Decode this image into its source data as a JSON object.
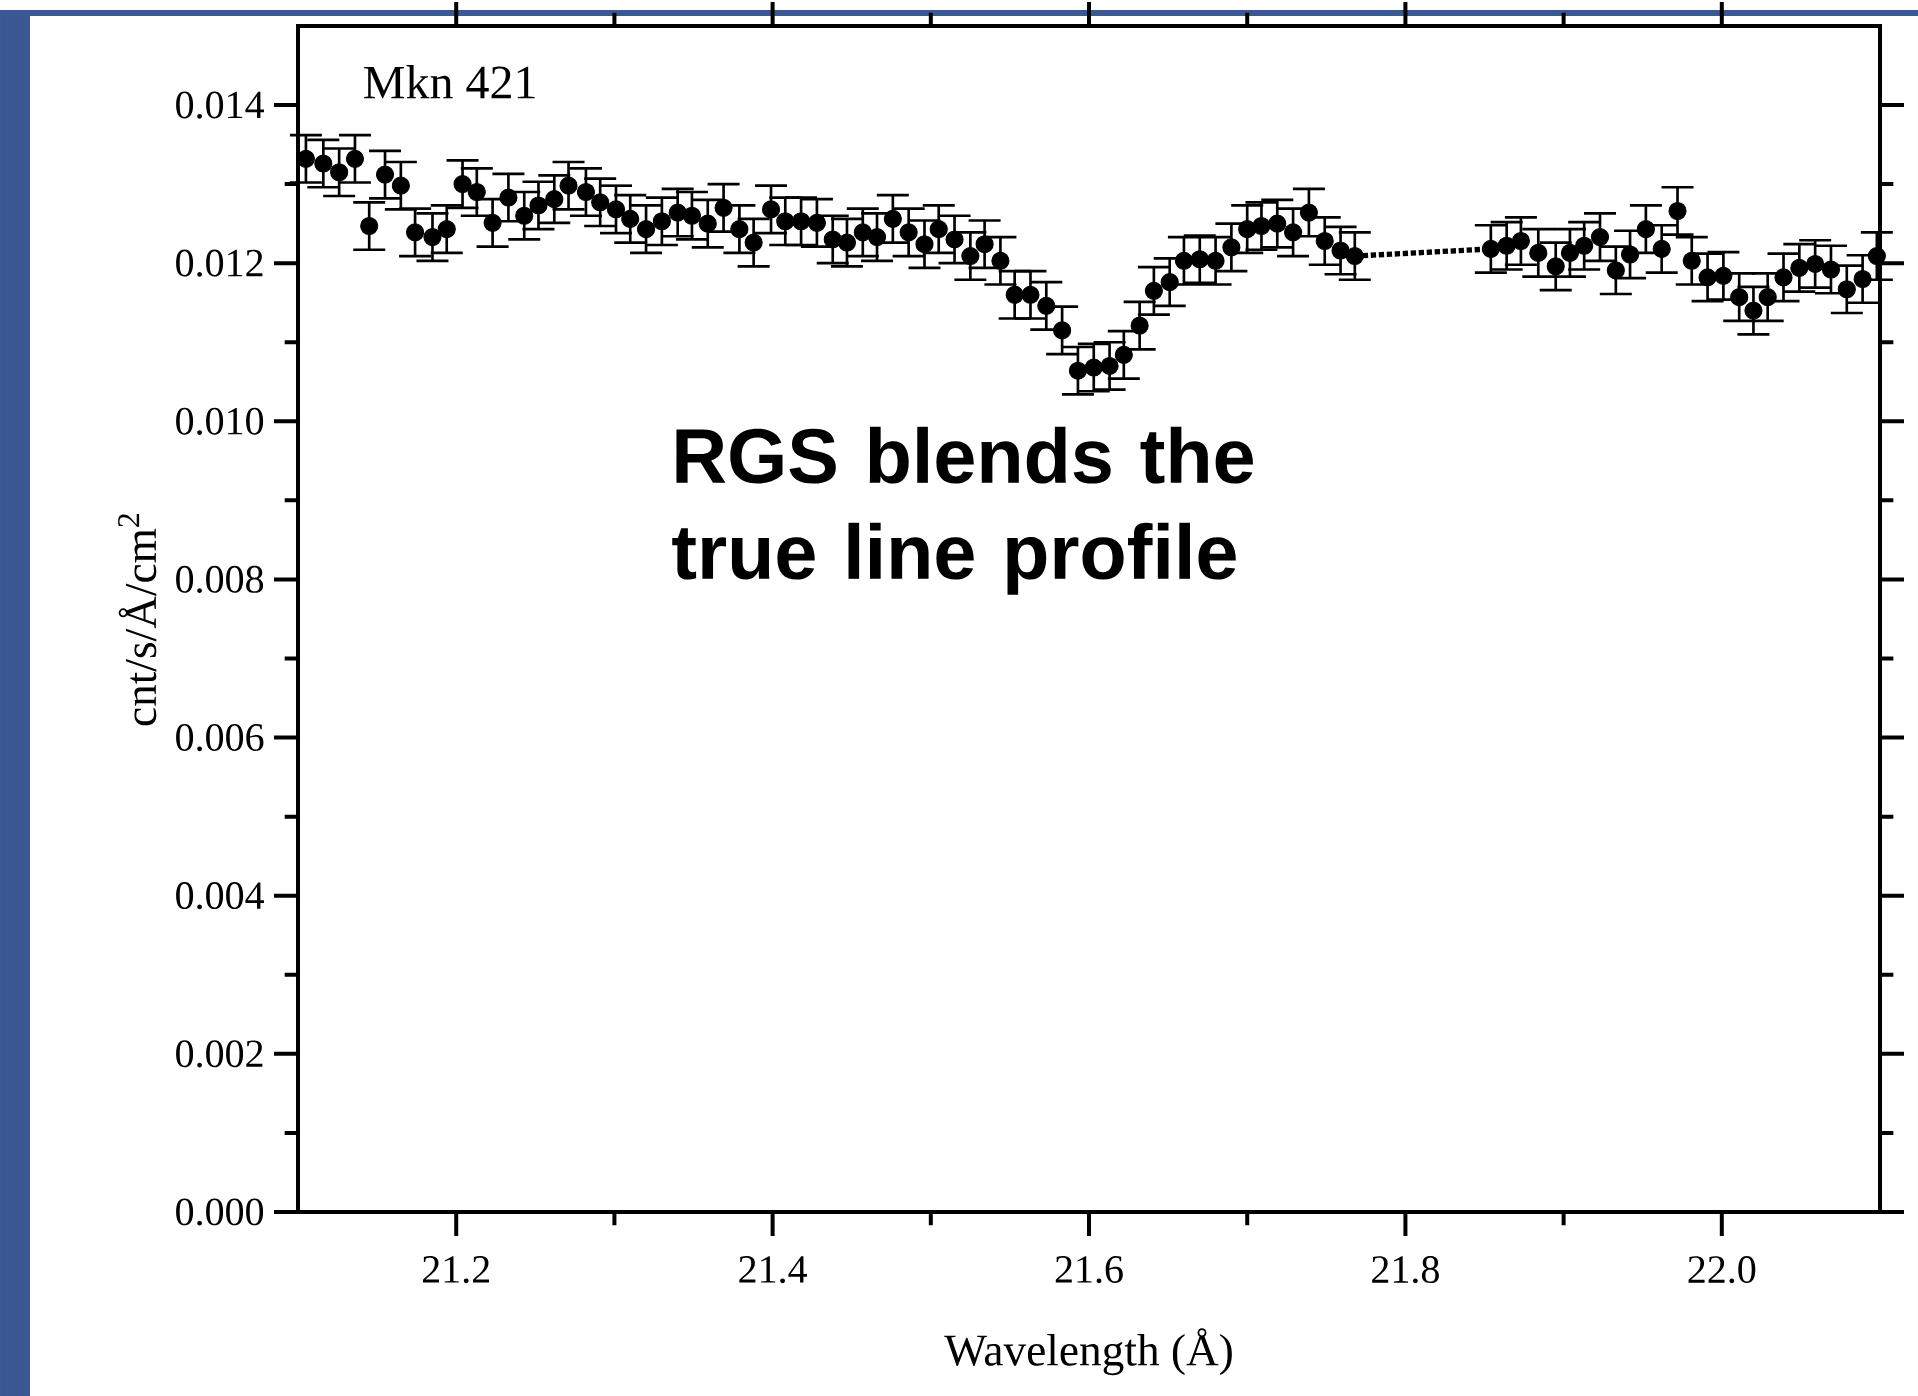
{
  "chart_data": {
    "type": "scatter",
    "xlabel": "Wavelength (Å)",
    "ylabel": "cnt/s/Å/cm$^{2}$",
    "annotations": [
      "Mkn 421",
      "RGS blends the true line profile"
    ],
    "xlim": [
      21.1,
      22.1
    ],
    "ylim": [
      0,
      0.015
    ],
    "xticks": [
      21.2,
      21.4,
      21.6,
      21.8,
      {
        "value": 22.0,
        "label": "22.0"
      }
    ],
    "yticks": [
      {
        "value": 0,
        "label": "0.000"
      },
      {
        "value": 0.002,
        "label": "0.002"
      },
      {
        "value": 0.004,
        "label": "0.004"
      },
      {
        "value": 0.006,
        "label": "0.006"
      },
      {
        "value": 0.008,
        "label": "0.008"
      },
      {
        "value": 0.01,
        "label": "0.010"
      },
      {
        "value": 0.012,
        "label": "0.012"
      },
      {
        "value": 0.014,
        "label": "0.014"
      }
    ],
    "series": [
      {
        "color": "#000000",
        "marker": "circle",
        "x": [
          21.105,
          21.116,
          21.126,
          21.136,
          21.145,
          21.155,
          21.165,
          21.174,
          21.185,
          21.194,
          21.204,
          21.213,
          21.223,
          21.233,
          21.243,
          21.252,
          21.262,
          21.271,
          21.282,
          21.291,
          21.301,
          21.31,
          21.32,
          21.33,
          21.34,
          21.349,
          21.359,
          21.369,
          21.379,
          21.388,
          21.399,
          21.408,
          21.418,
          21.428,
          21.438,
          21.447,
          21.457,
          21.466,
          21.476,
          21.486,
          21.496,
          21.505,
          21.515,
          21.525,
          21.534,
          21.544,
          21.553,
          21.563,
          21.573,
          21.583,
          21.593,
          21.603,
          21.613,
          21.622,
          21.632,
          21.641,
          21.651,
          21.66,
          21.67,
          21.68,
          21.69,
          21.7,
          21.709,
          21.719,
          21.729,
          21.739,
          21.749,
          21.759,
          21.768,
          21.854,
          21.864,
          21.873,
          21.884,
          21.895,
          21.904,
          21.913,
          21.923,
          21.933,
          21.942,
          21.952,
          21.962,
          21.972,
          21.981,
          21.991,
          22.001,
          22.011,
          22.02,
          22.029,
          22.039,
          22.049,
          22.059,
          22.069,
          22.079,
          22.089,
          22.098
        ],
        "values": [
          0.01332,
          0.01326,
          0.01315,
          0.01332,
          0.01247,
          0.01312,
          0.01298,
          0.01239,
          0.01233,
          0.01243,
          0.013,
          0.0129,
          0.01251,
          0.01283,
          0.0126,
          0.01273,
          0.01281,
          0.01298,
          0.0129,
          0.01277,
          0.01268,
          0.01256,
          0.01243,
          0.01253,
          0.01264,
          0.0126,
          0.0125,
          0.0127,
          0.01243,
          0.01226,
          0.01268,
          0.01253,
          0.01253,
          0.01251,
          0.0123,
          0.01226,
          0.01239,
          0.01233,
          0.01256,
          0.01239,
          0.01224,
          0.01243,
          0.0123,
          0.01209,
          0.01224,
          0.01203,
          0.0116,
          0.0116,
          0.01146,
          0.01115,
          0.01064,
          0.01068,
          0.0107,
          0.01084,
          0.01121,
          0.01165,
          0.01176,
          0.01203,
          0.01205,
          0.01203,
          0.0122,
          0.01243,
          0.01247,
          0.0125,
          0.01239,
          0.01264,
          0.01228,
          0.01216,
          0.01209,
          0.01218,
          0.01222,
          0.01228,
          0.01213,
          0.01196,
          0.01213,
          0.01222,
          0.01233,
          0.01191,
          0.01211,
          0.01243,
          0.01218,
          0.01266,
          0.01203,
          0.01182,
          0.01184,
          0.01157,
          0.0114,
          0.01157,
          0.01182,
          0.01194,
          0.01199,
          0.01192,
          0.01167,
          0.0118,
          0.01209
        ],
        "errors": [
          0.0003,
          0.0003,
          0.0003,
          0.0003,
          0.0003,
          0.0003,
          0.0003,
          0.0003,
          0.0003,
          0.0003,
          0.0003,
          0.0003,
          0.0003,
          0.0003,
          0.0003,
          0.0003,
          0.0003,
          0.0003,
          0.0003,
          0.0003,
          0.0003,
          0.0003,
          0.0003,
          0.0003,
          0.0003,
          0.0003,
          0.0003,
          0.0003,
          0.0003,
          0.0003,
          0.0003,
          0.0003,
          0.0003,
          0.0003,
          0.0003,
          0.0003,
          0.0003,
          0.0003,
          0.0003,
          0.0003,
          0.0003,
          0.0003,
          0.0003,
          0.0003,
          0.0003,
          0.0003,
          0.0003,
          0.0003,
          0.0003,
          0.0003,
          0.0003,
          0.0003,
          0.0003,
          0.0003,
          0.0003,
          0.0003,
          0.0003,
          0.0003,
          0.0003,
          0.0003,
          0.0003,
          0.0003,
          0.0003,
          0.0003,
          0.0003,
          0.0003,
          0.0003,
          0.0003,
          0.0003,
          0.0003,
          0.0003,
          0.0003,
          0.0003,
          0.0003,
          0.0003,
          0.0003,
          0.0003,
          0.0003,
          0.0003,
          0.0003,
          0.0003,
          0.0003,
          0.0003,
          0.0003,
          0.0003,
          0.0003,
          0.0003,
          0.0003,
          0.0003,
          0.0003,
          0.0003,
          0.0003,
          0.0003,
          0.0003,
          0.0003
        ]
      },
      {
        "type": "line",
        "color": "#000000",
        "marker": "none",
        "line_style": "dotted",
        "x": [
          21.768,
          21.854
        ],
        "values": [
          0.01209,
          0.01218
        ]
      }
    ]
  }
}
